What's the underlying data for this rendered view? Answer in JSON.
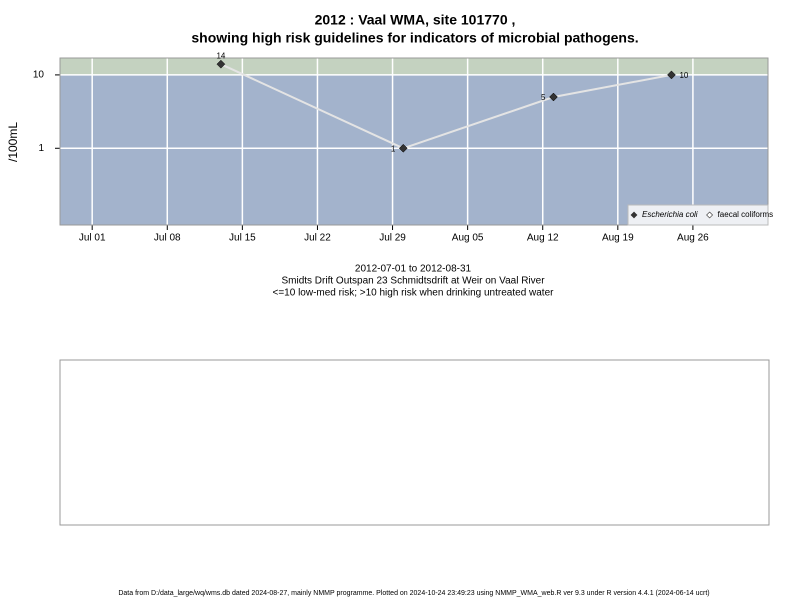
{
  "chart_data": {
    "type": "line",
    "title": "2012 : Vaal WMA, site 101770 ,",
    "subtitle": "showing high risk guidelines for indicators of microbial pathogens.",
    "y_label": "/100mL",
    "caption": [
      "2012-07-01 to 2012-08-31",
      "Smidts Drift Outspan 23 Schmidtsdrift at Weir on Vaal River",
      "<=10 low-med risk; >10 high risk when drinking untreated water"
    ],
    "footer": "Data from D:/data_large/wq/wms.db dated 2024-08-27, mainly NMMP programme. Plotted on 2024-10-24 23:49:23 using NMMP_WMA_web.R ver 9.3 under R version 4.4.1 (2024-06-14 ucrt)",
    "x": [
      "2012-07-13",
      "2012-07-30",
      "2012-08-13",
      "2012-08-24"
    ],
    "series": [
      {
        "name": "Escherichia coli",
        "color": "#333333",
        "values": [
          14,
          1,
          5,
          10
        ]
      },
      {
        "name": "faecal coliforms",
        "color": "#ffffff",
        "values": [
          null,
          null,
          null,
          null
        ]
      }
    ],
    "xlim": [
      "2012-06-28",
      "2012-09-02"
    ],
    "xticks": [
      {
        "value": "2012-07-01",
        "label": "Jul 01"
      },
      {
        "value": "2012-07-08",
        "label": "Jul 08"
      },
      {
        "value": "2012-07-15",
        "label": "Jul 15"
      },
      {
        "value": "2012-07-22",
        "label": "Jul 22"
      },
      {
        "value": "2012-07-29",
        "label": "Jul 29"
      },
      {
        "value": "2012-08-05",
        "label": "Aug 05"
      },
      {
        "value": "2012-08-12",
        "label": "Aug 12"
      },
      {
        "value": "2012-08-19",
        "label": "Aug 19"
      },
      {
        "value": "2012-08-26",
        "label": "Aug 26"
      }
    ],
    "ylim": [
      0.09,
      17
    ],
    "yticks": [
      1,
      10
    ],
    "log_y": true,
    "high_risk_threshold": 10,
    "grid": true,
    "legend": "bottom-right"
  }
}
